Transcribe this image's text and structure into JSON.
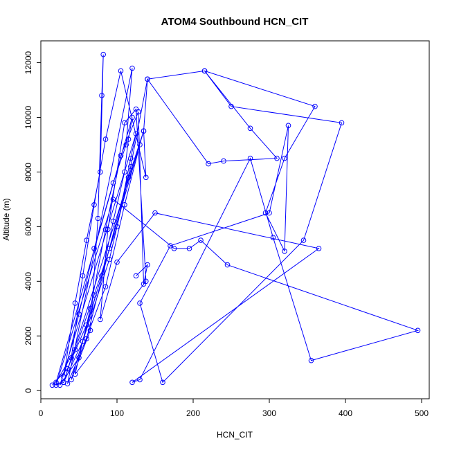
{
  "chart_data": {
    "type": "scatter",
    "title": "ATOM4 Southbound HCN_CIT",
    "xlabel": "HCN_CIT",
    "ylabel": "Altitude (m)",
    "xlim": [
      0,
      510
    ],
    "ylim": [
      -300,
      12800
    ],
    "x_ticks": [
      0,
      100,
      200,
      300,
      400,
      500
    ],
    "y_ticks": [
      0,
      2000,
      4000,
      6000,
      8000,
      10000,
      12000
    ],
    "grid": false,
    "legend": "none",
    "series_color": "#0000ff",
    "marker": "open-circle",
    "connected": true,
    "series": [
      {
        "x": [
          15,
          35,
          60,
          80,
          95,
          110,
          115,
          120,
          20,
          45,
          70,
          100,
          118,
          125,
          25,
          50,
          85,
          110,
          130,
          30,
          55,
          90,
          115,
          135,
          40,
          65,
          75,
          80,
          82,
          78,
          60,
          45,
          30,
          50,
          70,
          95,
          112,
          120,
          35,
          60,
          90,
          118,
          140,
          220,
          240,
          310,
          275,
          215,
          250,
          395,
          345,
          160,
          130,
          170,
          300,
          325,
          320,
          295,
          320,
          360,
          215,
          140,
          135,
          138,
          105,
          85,
          70,
          55,
          40,
          30,
          20,
          95,
          175,
          195,
          210,
          245,
          495,
          355,
          305,
          275,
          130,
          120,
          365,
          150,
          100,
          78,
          88,
          110,
          125,
          138,
          45,
          65,
          85,
          105,
          128,
          135,
          140,
          125
        ],
        "y": [
          200,
          800,
          2400,
          4200,
          6200,
          8000,
          9200,
          10000,
          300,
          1500,
          3500,
          6000,
          8500,
          9400,
          200,
          1200,
          3800,
          6800,
          9000,
          300,
          1800,
          4800,
          7800,
          9500,
          400,
          2200,
          6300,
          10800,
          12300,
          8000,
          5500,
          3200,
          500,
          2800,
          5200,
          7600,
          9000,
          11800,
          250,
          1900,
          5200,
          8200,
          11400,
          8300,
          8400,
          8500,
          9600,
          11700,
          10400,
          9800,
          5500,
          300,
          3200,
          5300,
          6500,
          9700,
          5100,
          6500,
          8500,
          10400,
          11700,
          11400,
          9500,
          7800,
          11700,
          9200,
          6800,
          4200,
          1200,
          300,
          200,
          7000,
          5200,
          5200,
          5500,
          4600,
          2200,
          1100,
          5600,
          8500,
          400,
          300,
          5200,
          6500,
          4700,
          2600,
          5900,
          9800,
          10300,
          4000,
          600,
          3000,
          5900,
          8600,
          10200,
          3900,
          4600,
          4200
        ]
      }
    ]
  }
}
